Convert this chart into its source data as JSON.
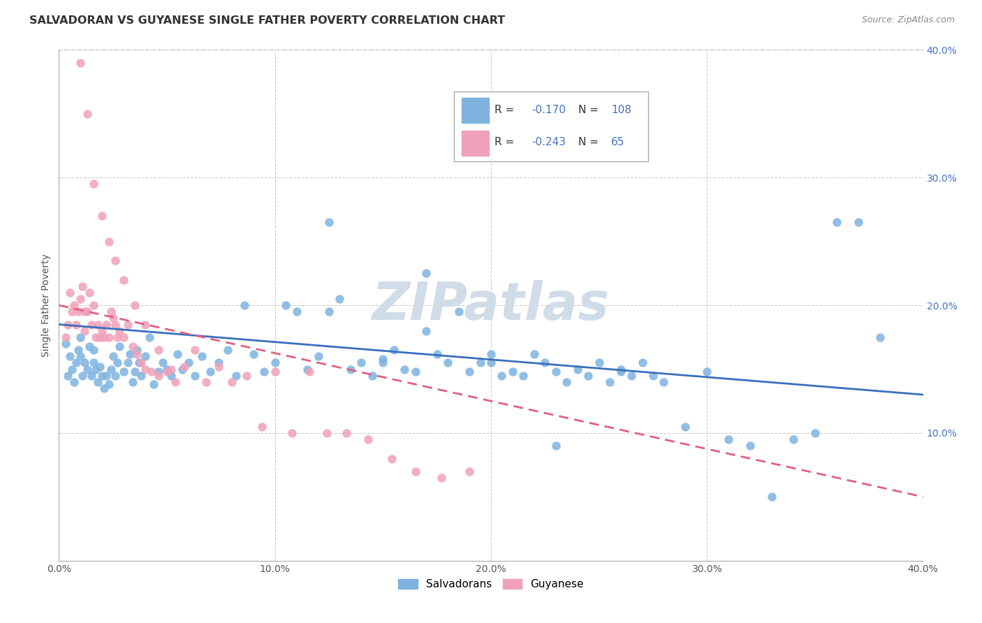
{
  "title": "SALVADORAN VS GUYANESE SINGLE FATHER POVERTY CORRELATION CHART",
  "source": "Source: ZipAtlas.com",
  "ylabel": "Single Father Poverty",
  "right_yticks": [
    "40.0%",
    "30.0%",
    "20.0%",
    "10.0%"
  ],
  "right_ytick_vals": [
    0.4,
    0.3,
    0.2,
    0.1
  ],
  "xlim": [
    0.0,
    0.4
  ],
  "ylim": [
    0.0,
    0.4
  ],
  "salvadoran_color": "#7eb3e0",
  "guyanese_color": "#f0a0b8",
  "salvadoran_line_color": "#3a6fbd",
  "guyanese_line_color": "#e06080",
  "watermark": "ZIPatlas",
  "watermark_color": "#d0dce8",
  "legend_label_salv": "Salvadorans",
  "legend_label_guy": "Guyanese",
  "salv_line_x0": 0.0,
  "salv_line_y0": 0.185,
  "salv_line_x1": 0.4,
  "salv_line_y1": 0.13,
  "guy_line_x0": 0.0,
  "guy_line_y0": 0.2,
  "guy_line_x1": 0.4,
  "guy_line_y1": 0.05,
  "salvadoran_x": [
    0.003,
    0.004,
    0.005,
    0.006,
    0.007,
    0.008,
    0.009,
    0.01,
    0.01,
    0.011,
    0.012,
    0.013,
    0.014,
    0.015,
    0.016,
    0.016,
    0.017,
    0.018,
    0.019,
    0.02,
    0.021,
    0.022,
    0.023,
    0.024,
    0.025,
    0.026,
    0.027,
    0.028,
    0.03,
    0.032,
    0.033,
    0.034,
    0.035,
    0.036,
    0.037,
    0.038,
    0.04,
    0.042,
    0.044,
    0.046,
    0.048,
    0.05,
    0.052,
    0.055,
    0.057,
    0.06,
    0.063,
    0.066,
    0.07,
    0.074,
    0.078,
    0.082,
    0.086,
    0.09,
    0.095,
    0.1,
    0.105,
    0.11,
    0.115,
    0.12,
    0.125,
    0.13,
    0.135,
    0.14,
    0.145,
    0.15,
    0.155,
    0.16,
    0.165,
    0.17,
    0.175,
    0.18,
    0.185,
    0.19,
    0.195,
    0.2,
    0.205,
    0.21,
    0.215,
    0.22,
    0.225,
    0.23,
    0.235,
    0.24,
    0.245,
    0.25,
    0.255,
    0.26,
    0.265,
    0.27,
    0.275,
    0.28,
    0.29,
    0.3,
    0.31,
    0.32,
    0.33,
    0.34,
    0.35,
    0.36,
    0.37,
    0.38,
    0.125,
    0.15,
    0.17,
    0.2,
    0.23,
    0.26
  ],
  "salvadoran_y": [
    0.17,
    0.145,
    0.16,
    0.15,
    0.14,
    0.155,
    0.165,
    0.16,
    0.175,
    0.145,
    0.155,
    0.15,
    0.168,
    0.145,
    0.155,
    0.165,
    0.15,
    0.14,
    0.152,
    0.145,
    0.135,
    0.145,
    0.138,
    0.15,
    0.16,
    0.145,
    0.155,
    0.168,
    0.148,
    0.155,
    0.162,
    0.14,
    0.148,
    0.165,
    0.155,
    0.145,
    0.16,
    0.175,
    0.138,
    0.148,
    0.155,
    0.15,
    0.145,
    0.162,
    0.15,
    0.155,
    0.145,
    0.16,
    0.148,
    0.155,
    0.165,
    0.145,
    0.2,
    0.162,
    0.148,
    0.155,
    0.2,
    0.195,
    0.15,
    0.16,
    0.195,
    0.205,
    0.15,
    0.155,
    0.145,
    0.158,
    0.165,
    0.15,
    0.148,
    0.225,
    0.162,
    0.155,
    0.195,
    0.148,
    0.155,
    0.162,
    0.145,
    0.148,
    0.145,
    0.162,
    0.155,
    0.148,
    0.14,
    0.15,
    0.145,
    0.155,
    0.14,
    0.15,
    0.145,
    0.155,
    0.145,
    0.14,
    0.105,
    0.148,
    0.095,
    0.09,
    0.05,
    0.095,
    0.1,
    0.265,
    0.265,
    0.175,
    0.265,
    0.155,
    0.18,
    0.155,
    0.09,
    0.148
  ],
  "guyanese_x": [
    0.003,
    0.004,
    0.005,
    0.006,
    0.007,
    0.008,
    0.009,
    0.01,
    0.011,
    0.012,
    0.012,
    0.013,
    0.014,
    0.015,
    0.016,
    0.017,
    0.018,
    0.019,
    0.02,
    0.021,
    0.022,
    0.023,
    0.024,
    0.025,
    0.026,
    0.027,
    0.028,
    0.03,
    0.032,
    0.034,
    0.036,
    0.038,
    0.04,
    0.043,
    0.046,
    0.05,
    0.054,
    0.058,
    0.063,
    0.068,
    0.074,
    0.08,
    0.087,
    0.094,
    0.1,
    0.108,
    0.116,
    0.124,
    0.133,
    0.143,
    0.154,
    0.165,
    0.177,
    0.19,
    0.01,
    0.013,
    0.016,
    0.02,
    0.023,
    0.026,
    0.03,
    0.035,
    0.04,
    0.046,
    0.052
  ],
  "guyanese_y": [
    0.175,
    0.185,
    0.21,
    0.195,
    0.2,
    0.185,
    0.195,
    0.205,
    0.215,
    0.195,
    0.18,
    0.195,
    0.21,
    0.185,
    0.2,
    0.175,
    0.185,
    0.175,
    0.18,
    0.175,
    0.185,
    0.175,
    0.195,
    0.19,
    0.185,
    0.175,
    0.18,
    0.175,
    0.185,
    0.168,
    0.162,
    0.155,
    0.15,
    0.148,
    0.145,
    0.148,
    0.14,
    0.152,
    0.165,
    0.14,
    0.152,
    0.14,
    0.145,
    0.105,
    0.148,
    0.1,
    0.148,
    0.1,
    0.1,
    0.095,
    0.08,
    0.07,
    0.065,
    0.07,
    0.39,
    0.35,
    0.295,
    0.27,
    0.25,
    0.235,
    0.22,
    0.2,
    0.185,
    0.165,
    0.15
  ]
}
